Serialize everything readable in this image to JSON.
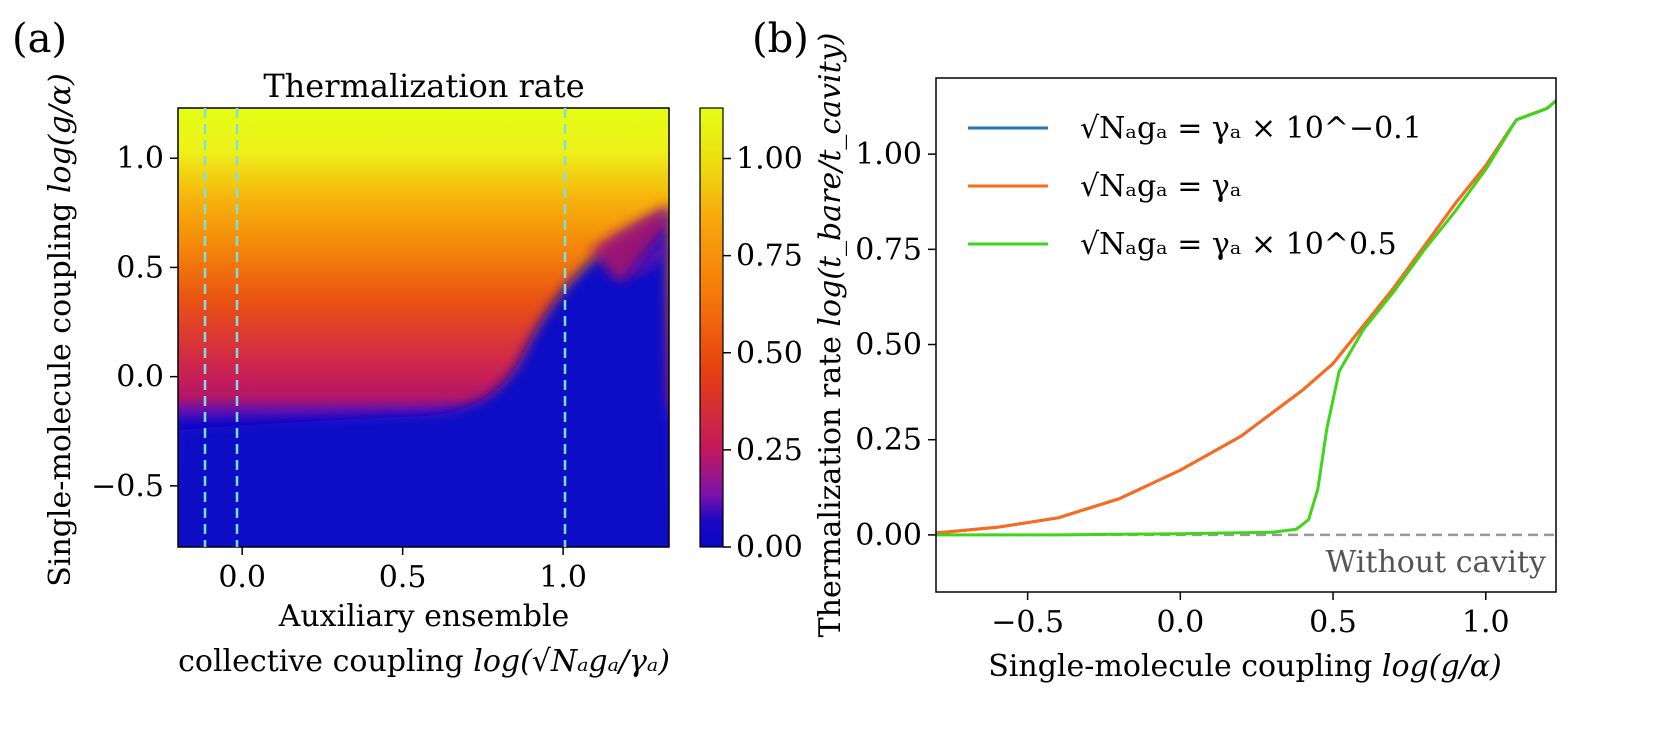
{
  "panel_a": {
    "tag": "(a)",
    "title": "Thermalization rate",
    "ylabel_text": "Single-molecule coupling ",
    "ylabel_math": "log(g/α)",
    "xlabel_line1": "Auxiliary ensemble",
    "xlabel_line2_text": "collective coupling ",
    "xlabel_line2_math": "log(√Nₐgₐ/γₐ)",
    "x_ticks": [
      "0.0",
      "0.5",
      "1.0"
    ],
    "y_ticks": [
      "−0.5",
      "0.0",
      "0.5",
      "1.0"
    ],
    "colorbar_ticks": [
      "0.00",
      "0.25",
      "0.50",
      "0.75",
      "1.00"
    ],
    "dashed_line_color": "#7fdfe0"
  },
  "panel_b": {
    "tag": "(b)",
    "ylabel_text": "Thermalization rate ",
    "ylabel_math": "log(t_bare/t_cavity)",
    "xlabel_text": "Single-molecule coupling ",
    "xlabel_math": "log(g/α)",
    "baseline_label": "Without cavity",
    "legend": [
      {
        "label": "√Nₐgₐ = γₐ × 10^−0.1",
        "color": "#1f77b4"
      },
      {
        "label": "√Nₐgₐ = γₐ",
        "color": "#ff6a1a"
      },
      {
        "label": "√Nₐgₐ = γₐ × 10^0.5",
        "color": "#3fd61a"
      }
    ]
  },
  "chart_data": [
    {
      "type": "heatmap",
      "title": "Thermalization rate",
      "xlabel": "Auxiliary ensemble collective coupling log(√Na ga/γa)",
      "ylabel": "Single-molecule coupling log(g/α)",
      "xlim": [
        -0.2,
        1.33
      ],
      "ylim": [
        -0.78,
        1.23
      ],
      "colorbar": {
        "min": 0.0,
        "max": 1.13,
        "ticks": [
          0.0,
          0.25,
          0.5,
          0.75,
          1.0
        ],
        "cmap": "plasma-like (blue→magenta→orange→yellow)"
      },
      "vertical_dashed_lines_x": [
        -0.1,
        0.0,
        1.0
      ],
      "x_ticks": [
        0.0,
        0.5,
        1.0
      ],
      "y_ticks": [
        -0.5,
        0.0,
        0.5,
        1.0
      ]
    },
    {
      "type": "line",
      "xlabel": "Single-molecule coupling log(g/α)",
      "ylabel": "Thermalization rate log(t_bare/t_cavity)",
      "xlim": [
        -0.8,
        1.23
      ],
      "ylim": [
        -0.15,
        1.2
      ],
      "x_ticks": [
        -0.5,
        0.0,
        0.5,
        1.0
      ],
      "y_ticks": [
        0.0,
        0.25,
        0.5,
        0.75,
        1.0
      ],
      "baseline": {
        "y": 0.0,
        "label": "Without cavity",
        "style": "dashed"
      },
      "series": [
        {
          "name": "√Na ga = γa × 10^-0.1",
          "color": "#1f77b4",
          "x": [
            -0.8,
            -0.6,
            -0.4,
            -0.2,
            0.0,
            0.2,
            0.4,
            0.5,
            0.6,
            0.7,
            0.8,
            0.9,
            1.0,
            1.1,
            1.2,
            1.23
          ],
          "y": [
            0.005,
            0.02,
            0.045,
            0.095,
            0.17,
            0.26,
            0.38,
            0.45,
            0.55,
            0.65,
            0.76,
            0.87,
            0.97,
            1.09,
            1.12,
            1.14
          ]
        },
        {
          "name": "√Na ga = γa",
          "color": "#ff6a1a",
          "x": [
            -0.8,
            -0.6,
            -0.4,
            -0.2,
            0.0,
            0.2,
            0.4,
            0.5,
            0.6,
            0.7,
            0.8,
            0.9,
            1.0,
            1.1,
            1.2,
            1.23
          ],
          "y": [
            0.005,
            0.02,
            0.045,
            0.095,
            0.17,
            0.26,
            0.38,
            0.45,
            0.55,
            0.65,
            0.76,
            0.87,
            0.97,
            1.09,
            1.12,
            1.14
          ]
        },
        {
          "name": "√Na ga = γa × 10^0.5",
          "color": "#3fd61a",
          "x": [
            -0.8,
            -0.4,
            0.0,
            0.3,
            0.38,
            0.42,
            0.45,
            0.48,
            0.52,
            0.6,
            0.7,
            0.8,
            0.9,
            1.0,
            1.1,
            1.2,
            1.23
          ],
          "y": [
            0.0,
            0.0,
            0.003,
            0.007,
            0.015,
            0.04,
            0.12,
            0.28,
            0.43,
            0.54,
            0.64,
            0.75,
            0.85,
            0.96,
            1.09,
            1.12,
            1.14
          ]
        }
      ]
    }
  ]
}
